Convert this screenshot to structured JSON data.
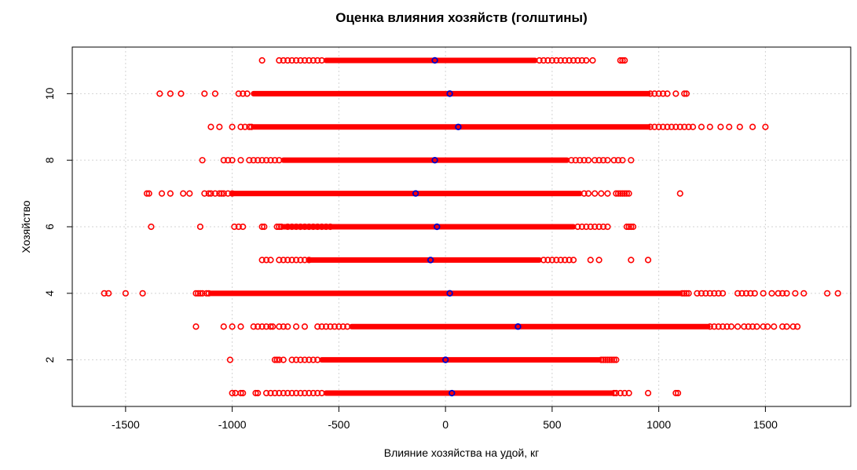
{
  "chart_data": {
    "type": "scatter",
    "title": "Оценка влияния хозяйств (голштины)",
    "xlabel": "Влияние хозяйства на удой, кг",
    "ylabel": "Хозяйство",
    "xlim": [
      -1750,
      1900
    ],
    "ylim": [
      0.6,
      11.4
    ],
    "x_ticks": [
      -1500,
      -1000,
      -500,
      0,
      500,
      1000,
      1500
    ],
    "x_tick_labels": [
      "-1500",
      "-1000",
      "-500",
      "0",
      "500",
      "1000",
      "1500"
    ],
    "y_ticks": [
      2,
      4,
      6,
      8,
      10
    ],
    "y_tick_labels": [
      "2",
      "4",
      "6",
      "8",
      "10"
    ],
    "grid": true,
    "point_color": "#ff0000",
    "mean_color": "#0000cc",
    "series": [
      {
        "y": 1,
        "band": [
          -560,
          780
        ],
        "mean": 30,
        "points": [
          -1000,
          -985,
          -960,
          -950,
          -890,
          -880,
          -840,
          -820,
          -800,
          -780,
          -760,
          -740,
          -720,
          -700,
          -680,
          -660,
          -640,
          -620,
          -600,
          -580,
          790,
          800,
          820,
          840,
          860,
          950,
          1080,
          1090
        ]
      },
      {
        "y": 2,
        "band": [
          -580,
          720
        ],
        "mean": 0,
        "points": [
          -1010,
          -800,
          -790,
          -780,
          -760,
          -720,
          -700,
          -680,
          -660,
          -640,
          -620,
          -600,
          730,
          740,
          750,
          760,
          770,
          780,
          790,
          800
        ]
      },
      {
        "y": 3,
        "band": [
          -440,
          1230
        ],
        "mean": 340,
        "points": [
          -1170,
          -1040,
          -1000,
          -960,
          -900,
          -880,
          -860,
          -840,
          -820,
          -810,
          -780,
          -760,
          -740,
          -700,
          -660,
          -600,
          -580,
          -560,
          -540,
          -520,
          -500,
          -480,
          -460,
          1240,
          1260,
          1280,
          1300,
          1320,
          1340,
          1370,
          1400,
          1420,
          1440,
          1460,
          1490,
          1510,
          1540,
          1580,
          1600,
          1630,
          1650
        ]
      },
      {
        "y": 4,
        "band": [
          -1100,
          1100
        ],
        "mean": 20,
        "points": [
          -1600,
          -1580,
          -1500,
          -1420,
          -1170,
          -1160,
          -1150,
          -1140,
          -1120,
          -1110,
          1110,
          1120,
          1130,
          1140,
          1180,
          1200,
          1220,
          1240,
          1260,
          1280,
          1300,
          1370,
          1390,
          1410,
          1430,
          1450,
          1490,
          1530,
          1560,
          1580,
          1600,
          1640,
          1680,
          1790,
          1840
        ]
      },
      {
        "y": 5,
        "band": [
          -640,
          440
        ],
        "mean": -70,
        "points": [
          -860,
          -840,
          -820,
          -780,
          -760,
          -740,
          -720,
          -700,
          -680,
          -660,
          -640,
          460,
          480,
          500,
          520,
          540,
          560,
          580,
          600,
          680,
          720,
          870,
          950
        ]
      },
      {
        "y": 6,
        "band": [
          -760,
          600
        ],
        "mean": -40,
        "points": [
          -1380,
          -1150,
          -990,
          -970,
          -950,
          -860,
          -850,
          -790,
          -780,
          -770,
          -740,
          -720,
          -700,
          -680,
          -660,
          -640,
          -620,
          -600,
          -580,
          -560,
          -540,
          620,
          640,
          660,
          680,
          700,
          720,
          740,
          760,
          850,
          860,
          870,
          880
        ]
      },
      {
        "y": 7,
        "band": [
          -1000,
          630
        ],
        "mean": -140,
        "points": [
          -1400,
          -1390,
          -1330,
          -1290,
          -1230,
          -1200,
          -1130,
          -1110,
          -1100,
          -1080,
          -1060,
          -1050,
          -1040,
          -1020,
          -1000,
          650,
          670,
          700,
          730,
          760,
          800,
          810,
          820,
          830,
          840,
          850,
          860,
          1100
        ]
      },
      {
        "y": 8,
        "band": [
          -760,
          570
        ],
        "mean": -50,
        "points": [
          -1140,
          -1040,
          -1020,
          -1000,
          -960,
          -920,
          -900,
          -880,
          -860,
          -840,
          -820,
          -800,
          -780,
          590,
          610,
          630,
          650,
          670,
          700,
          720,
          740,
          760,
          790,
          810,
          830,
          870
        ]
      },
      {
        "y": 9,
        "band": [
          -900,
          950
        ],
        "mean": 60,
        "points": [
          -1100,
          -1060,
          -1000,
          -960,
          -940,
          -920,
          -910,
          960,
          980,
          1000,
          1020,
          1040,
          1060,
          1080,
          1100,
          1120,
          1140,
          1160,
          1200,
          1240,
          1290,
          1330,
          1380,
          1440,
          1500
        ]
      },
      {
        "y": 10,
        "band": [
          -900,
          950
        ],
        "mean": 20,
        "points": [
          -1340,
          -1290,
          -1240,
          -1130,
          -1080,
          -970,
          -950,
          -930,
          960,
          980,
          1000,
          1020,
          1040,
          1080,
          1120,
          1130
        ]
      },
      {
        "y": 11,
        "band": [
          -560,
          420
        ],
        "mean": -50,
        "points": [
          -860,
          -780,
          -760,
          -740,
          -720,
          -700,
          -680,
          -660,
          -640,
          -620,
          -600,
          -580,
          440,
          460,
          480,
          500,
          520,
          540,
          560,
          580,
          600,
          620,
          640,
          660,
          690,
          820,
          830,
          840
        ]
      }
    ]
  }
}
